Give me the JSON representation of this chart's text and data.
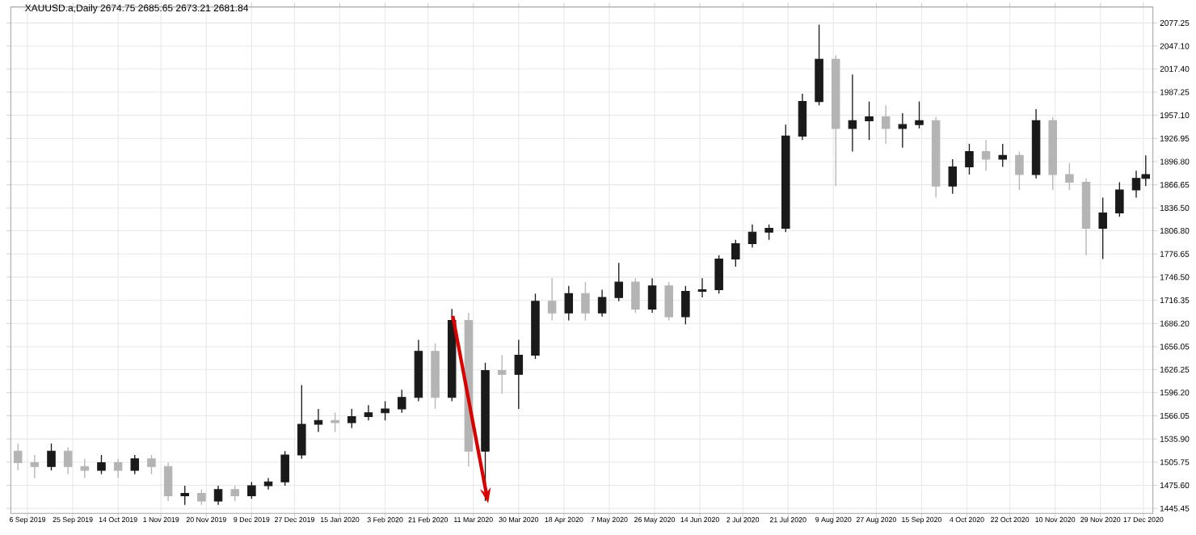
{
  "chart_data": {
    "type": "candlestick",
    "title": "XAUUSD.a,Daily  2674.75 2685.65 2673.21 2681.84",
    "grid": true,
    "colors": [
      "#b4b4b4",
      "#b4b4b4",
      "#1a1a1a",
      "#b4b4b4",
      "#b4b4b4",
      "#1a1a1a",
      "#b4b4b4",
      "#1a1a1a",
      "#b4b4b4",
      "#b4b4b4",
      "#1a1a1a",
      "#b4b4b4",
      "#1a1a1a",
      "#b4b4b4",
      "#1a1a1a",
      "#1a1a1a",
      "#1a1a1a",
      "#1a1a1a",
      "#1a1a1a",
      "#b4b4b4",
      "#1a1a1a",
      "#1a1a1a",
      "#1a1a1a",
      "#1a1a1a",
      "#1a1a1a",
      "#b4b4b4",
      "#1a1a1a",
      "#b4b4b4",
      "#1a1a1a",
      "#b4b4b4",
      "#1a1a1a",
      "#1a1a1a",
      "#b4b4b4",
      "#1a1a1a",
      "#b4b4b4",
      "#1a1a1a",
      "#1a1a1a",
      "#b4b4b4",
      "#1a1a1a",
      "#b4b4b4",
      "#1a1a1a",
      "#1a1a1a",
      "#1a1a1a",
      "#1a1a1a",
      "#1a1a1a",
      "#1a1a1a",
      "#1a1a1a",
      "#1a1a1a",
      "#1a1a1a",
      "#b4b4b4",
      "#1a1a1a",
      "#1a1a1a",
      "#b4b4b4",
      "#1a1a1a",
      "#1a1a1a",
      "#b4b4b4",
      "#1a1a1a",
      "#1a1a1a",
      "#b4b4b4",
      "#1a1a1a",
      "#b4b4b4",
      "#1a1a1a",
      "#b4b4b4",
      "#b4b4b4",
      "#b4b4b4",
      "#1a1a1a",
      "#1a1a1a",
      "#1a1a1a",
      "#1a1a1a"
    ],
    "x": [
      "2019-09-02",
      "2019-09-09",
      "2019-09-16",
      "2019-09-23",
      "2019-09-30",
      "2019-10-07",
      "2019-10-14",
      "2019-10-21",
      "2019-10-28",
      "2019-11-04",
      "2019-11-11",
      "2019-11-18",
      "2019-11-25",
      "2019-12-02",
      "2019-12-09",
      "2019-12-16",
      "2019-12-23",
      "2019-12-30",
      "2020-01-06",
      "2020-01-13",
      "2020-01-20",
      "2020-01-27",
      "2020-02-03",
      "2020-02-10",
      "2020-02-17",
      "2020-02-24",
      "2020-03-02",
      "2020-03-09",
      "2020-03-16",
      "2020-03-23",
      "2020-03-30",
      "2020-04-06",
      "2020-04-13",
      "2020-04-20",
      "2020-04-27",
      "2020-05-04",
      "2020-05-11",
      "2020-05-18",
      "2020-05-25",
      "2020-06-01",
      "2020-06-08",
      "2020-06-15",
      "2020-06-22",
      "2020-06-29",
      "2020-07-06",
      "2020-07-13",
      "2020-07-20",
      "2020-07-27",
      "2020-08-03",
      "2020-08-10",
      "2020-08-17",
      "2020-08-24",
      "2020-08-31",
      "2020-09-07",
      "2020-09-14",
      "2020-09-21",
      "2020-09-28",
      "2020-10-05",
      "2020-10-12",
      "2020-10-19",
      "2020-10-26",
      "2020-11-02",
      "2020-11-09",
      "2020-11-16",
      "2020-11-23",
      "2020-11-30",
      "2020-12-07",
      "2020-12-14",
      "2020-12-18"
    ],
    "ohlc": [
      [
        1520,
        1530,
        1495,
        1505
      ],
      [
        1505,
        1515,
        1485,
        1500
      ],
      [
        1500,
        1530,
        1495,
        1520
      ],
      [
        1520,
        1525,
        1490,
        1500
      ],
      [
        1500,
        1510,
        1485,
        1495
      ],
      [
        1495,
        1515,
        1490,
        1505
      ],
      [
        1505,
        1510,
        1485,
        1495
      ],
      [
        1495,
        1515,
        1490,
        1510
      ],
      [
        1510,
        1515,
        1490,
        1500
      ],
      [
        1500,
        1505,
        1455,
        1462
      ],
      [
        1462,
        1475,
        1450,
        1465
      ],
      [
        1465,
        1470,
        1450,
        1455
      ],
      [
        1455,
        1475,
        1450,
        1470
      ],
      [
        1470,
        1475,
        1455,
        1462
      ],
      [
        1462,
        1480,
        1458,
        1475
      ],
      [
        1475,
        1485,
        1470,
        1480
      ],
      [
        1480,
        1520,
        1475,
        1515
      ],
      [
        1515,
        1606,
        1510,
        1555
      ],
      [
        1555,
        1575,
        1545,
        1560
      ],
      [
        1560,
        1570,
        1545,
        1557
      ],
      [
        1557,
        1575,
        1550,
        1565
      ],
      [
        1565,
        1580,
        1560,
        1570
      ],
      [
        1570,
        1585,
        1560,
        1575
      ],
      [
        1575,
        1600,
        1570,
        1590
      ],
      [
        1590,
        1665,
        1585,
        1650
      ],
      [
        1650,
        1660,
        1575,
        1590
      ],
      [
        1590,
        1705,
        1585,
        1690
      ],
      [
        1690,
        1700,
        1500,
        1520
      ],
      [
        1520,
        1635,
        1455,
        1625
      ],
      [
        1625,
        1645,
        1595,
        1620
      ],
      [
        1620,
        1665,
        1575,
        1645
      ],
      [
        1645,
        1725,
        1640,
        1715
      ],
      [
        1715,
        1745,
        1690,
        1700
      ],
      [
        1700,
        1735,
        1690,
        1725
      ],
      [
        1725,
        1740,
        1690,
        1700
      ],
      [
        1700,
        1730,
        1695,
        1720
      ],
      [
        1720,
        1765,
        1715,
        1740
      ],
      [
        1740,
        1745,
        1700,
        1705
      ],
      [
        1705,
        1745,
        1700,
        1735
      ],
      [
        1735,
        1740,
        1690,
        1695
      ],
      [
        1695,
        1735,
        1685,
        1728
      ],
      [
        1728,
        1745,
        1720,
        1730
      ],
      [
        1730,
        1775,
        1725,
        1770
      ],
      [
        1770,
        1795,
        1760,
        1790
      ],
      [
        1790,
        1815,
        1785,
        1805
      ],
      [
        1805,
        1815,
        1795,
        1810
      ],
      [
        1810,
        1945,
        1805,
        1930
      ],
      [
        1930,
        1985,
        1925,
        1975
      ],
      [
        1975,
        2075,
        1970,
        2030
      ],
      [
        2030,
        2035,
        1865,
        1940
      ],
      [
        1940,
        2010,
        1910,
        1950
      ],
      [
        1950,
        1975,
        1925,
        1955
      ],
      [
        1955,
        1970,
        1920,
        1940
      ],
      [
        1940,
        1960,
        1915,
        1945
      ],
      [
        1945,
        1975,
        1940,
        1950
      ],
      [
        1950,
        1955,
        1850,
        1865
      ],
      [
        1865,
        1900,
        1855,
        1890
      ],
      [
        1890,
        1920,
        1880,
        1910
      ],
      [
        1910,
        1925,
        1885,
        1900
      ],
      [
        1900,
        1920,
        1890,
        1905
      ],
      [
        1905,
        1910,
        1860,
        1880
      ],
      [
        1880,
        1965,
        1875,
        1950
      ],
      [
        1950,
        1955,
        1860,
        1880
      ],
      [
        1880,
        1895,
        1860,
        1870
      ],
      [
        1870,
        1875,
        1775,
        1810
      ],
      [
        1810,
        1850,
        1770,
        1830
      ],
      [
        1830,
        1870,
        1825,
        1860
      ],
      [
        1860,
        1885,
        1850,
        1875
      ],
      [
        1875,
        1905,
        1865,
        1880
      ]
    ],
    "xlim": [
      "2019-08-30",
      "2020-12-21"
    ],
    "xticks": [
      {
        "value": "2019-09-06",
        "label": "6 Sep 2019"
      },
      {
        "value": "2019-09-25",
        "label": "25 Sep 2019"
      },
      {
        "value": "2019-10-14",
        "label": "14 Oct 2019"
      },
      {
        "value": "2019-11-01",
        "label": "1 Nov 2019"
      },
      {
        "value": "2019-11-20",
        "label": "20 Nov 2019"
      },
      {
        "value": "2019-12-09",
        "label": "9 Dec 2019"
      },
      {
        "value": "2019-12-27",
        "label": "27 Dec 2019"
      },
      {
        "value": "2020-01-15",
        "label": "15 Jan 2020"
      },
      {
        "value": "2020-02-03",
        "label": "3 Feb 2020"
      },
      {
        "value": "2020-02-21",
        "label": "21 Feb 2020"
      },
      {
        "value": "2020-03-11",
        "label": "11 Mar 2020"
      },
      {
        "value": "2020-03-30",
        "label": "30 Mar 2020"
      },
      {
        "value": "2020-04-18",
        "label": "18 Apr 2020"
      },
      {
        "value": "2020-05-07",
        "label": "7 May 2020"
      },
      {
        "value": "2020-05-26",
        "label": "26 May 2020"
      },
      {
        "value": "2020-06-14",
        "label": "14 Jun 2020"
      },
      {
        "value": "2020-07-02",
        "label": "2 Jul 2020"
      },
      {
        "value": "2020-07-21",
        "label": "21 Jul 2020"
      },
      {
        "value": "2020-08-09",
        "label": "9 Aug 2020"
      },
      {
        "value": "2020-08-27",
        "label": "27 Aug 2020"
      },
      {
        "value": "2020-09-15",
        "label": "15 Sep 2020"
      },
      {
        "value": "2020-10-04",
        "label": "4 Oct 2020"
      },
      {
        "value": "2020-10-22",
        "label": "22 Oct 2020"
      },
      {
        "value": "2020-11-10",
        "label": "10 Nov 2020"
      },
      {
        "value": "2020-11-29",
        "label": "29 Nov 2020"
      },
      {
        "value": "2020-12-17",
        "label": "17 Dec 2020"
      }
    ],
    "ylim": [
      1439,
      2098
    ],
    "yticks": [
      {
        "value": 1445.45,
        "label": "1445.45"
      },
      {
        "value": 1475.6,
        "label": "1475.60"
      },
      {
        "value": 1505.75,
        "label": "1505.75"
      },
      {
        "value": 1535.9,
        "label": "1535.90"
      },
      {
        "value": 1566.05,
        "label": "1566.05"
      },
      {
        "value": 1596.2,
        "label": "1596.20"
      },
      {
        "value": 1626.25,
        "label": "1626.25"
      },
      {
        "value": 1656.05,
        "label": "1656.05"
      },
      {
        "value": 1686.2,
        "label": "1686.20"
      },
      {
        "value": 1716.35,
        "label": "1716.35"
      },
      {
        "value": 1746.5,
        "label": "1746.50"
      },
      {
        "value": 1776.65,
        "label": "1776.65"
      },
      {
        "value": 1806.8,
        "label": "1806.80"
      },
      {
        "value": 1836.5,
        "label": "1836.50"
      },
      {
        "value": 1866.65,
        "label": "1866.65"
      },
      {
        "value": 1896.8,
        "label": "1896.80"
      },
      {
        "value": 1926.95,
        "label": "1926.95"
      },
      {
        "value": 1957.1,
        "label": "1957.10"
      },
      {
        "value": 1987.25,
        "label": "1987.25"
      },
      {
        "value": 2017.4,
        "label": "2017.40"
      },
      {
        "value": 2047.1,
        "label": "2047.10"
      },
      {
        "value": 2077.25,
        "label": "2077.25"
      }
    ]
  }
}
